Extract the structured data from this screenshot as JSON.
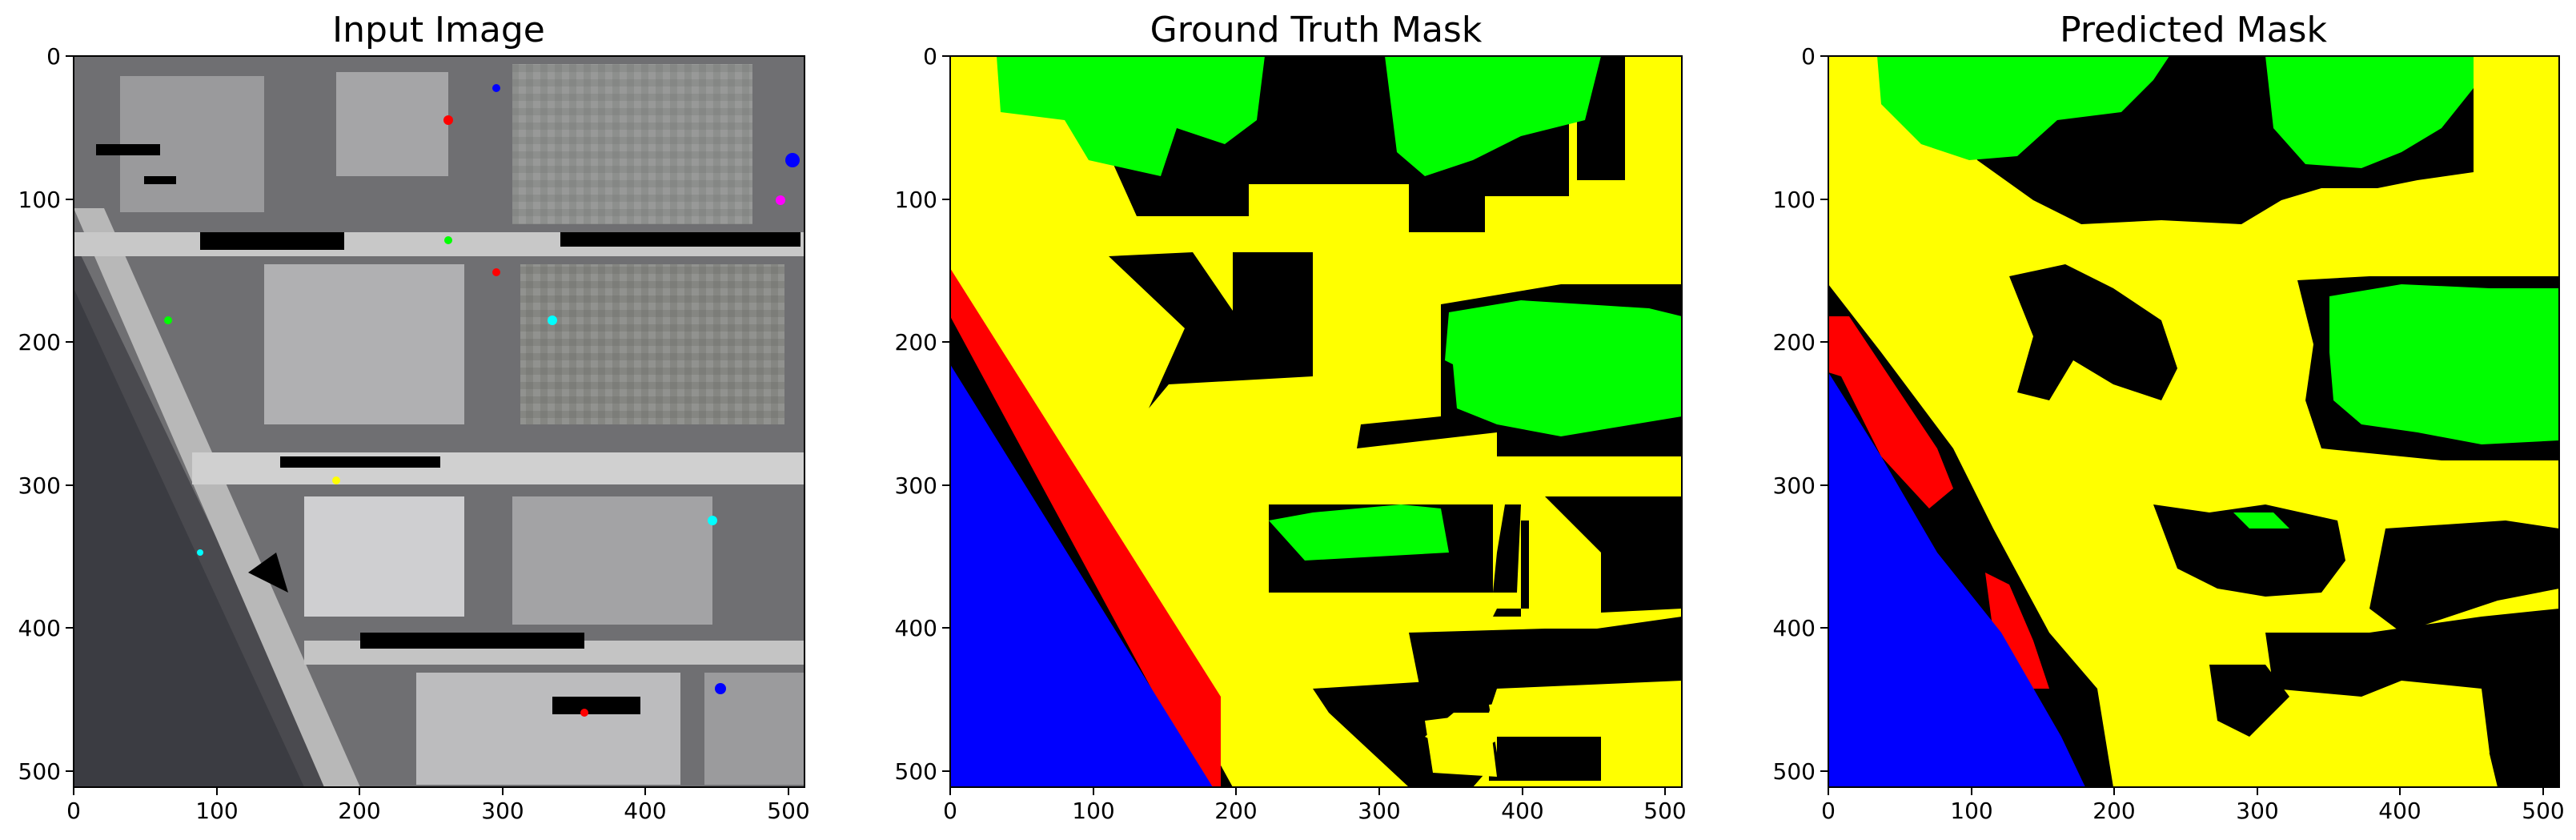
{
  "figure": {
    "panels": [
      {
        "id": "input",
        "title": "Input Image",
        "x_ticks": [
          "0",
          "100",
          "200",
          "300",
          "400",
          "500"
        ],
        "y_ticks": [
          "0",
          "100",
          "200",
          "300",
          "400",
          "500"
        ]
      },
      {
        "id": "gt",
        "title": "Ground Truth Mask",
        "x_ticks": [
          "0",
          "100",
          "200",
          "300",
          "400",
          "500"
        ],
        "y_ticks": [
          "0",
          "100",
          "200",
          "300",
          "400",
          "500"
        ]
      },
      {
        "id": "pred",
        "title": "Predicted Mask",
        "x_ticks": [
          "0",
          "100",
          "200",
          "300",
          "400",
          "500"
        ],
        "y_ticks": [
          "0",
          "100",
          "200",
          "300",
          "400",
          "500"
        ]
      }
    ],
    "mask_colors": {
      "road": "#ffff00",
      "vegetation": "#00ff00",
      "water": "#0000ff",
      "background": "#000000",
      "red_class": "#ff0000"
    }
  }
}
